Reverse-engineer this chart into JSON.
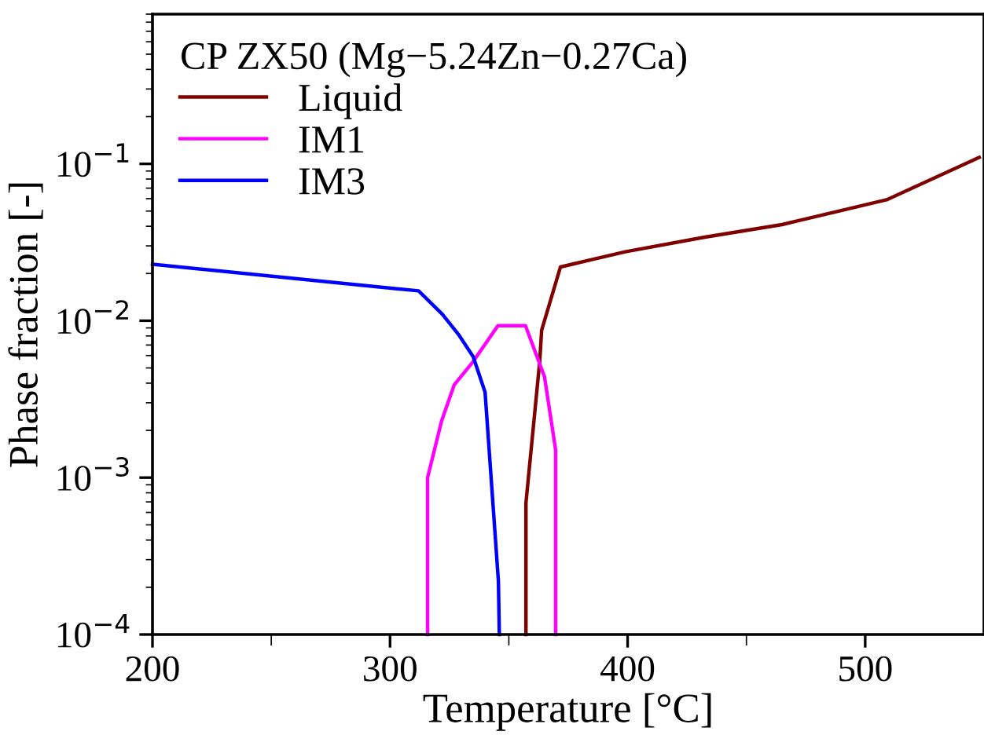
{
  "chart_data": {
    "type": "line",
    "legend_title": "CP ZX50 (Mg−5.24Zn−0.27Ca)",
    "xlabel": "Temperature [°C]",
    "ylabel": "Phase fraction [-]",
    "xlim": [
      200,
      550
    ],
    "xticks": [
      200,
      300,
      400,
      500
    ],
    "ylim": [
      0.0001,
      0.9
    ],
    "yticks": [
      {
        "value": 0.0001,
        "label": "10$^{−4}$"
      },
      {
        "value": 0.001,
        "label": "10$^{−3}$"
      },
      {
        "value": 0.01,
        "label": "10$^{−2}$"
      },
      {
        "value": 0.1,
        "label": "10$^{−1}$"
      }
    ],
    "log": "y",
    "grid": false,
    "legend": "top left",
    "line_style": "solid",
    "marker": "none",
    "series": [
      {
        "name": "Liquid",
        "color": "#800000",
        "x": [
          357.2,
          357.2,
          363,
          363.8,
          371.7,
          399,
          432,
          465,
          509,
          548
        ],
        "values": [
          0.0001,
          0.00069,
          0.0055,
          0.0087,
          0.022,
          0.0275,
          0.034,
          0.041,
          0.059,
          0.11
        ]
      },
      {
        "name": "IM1",
        "color": "#ff00ff",
        "x": [
          315.8,
          315.8,
          321.7,
          327,
          335,
          345.4,
          357,
          365,
          369.7,
          369.7
        ],
        "values": [
          0.0001,
          0.001,
          0.0023,
          0.0039,
          0.0055,
          0.0093,
          0.0093,
          0.0044,
          0.0015,
          0.0001
        ]
      },
      {
        "name": "IM3",
        "color": "#0000ff",
        "x": [
          200,
          312,
          322,
          329,
          335,
          340,
          345.6,
          346
        ],
        "values": [
          0.0229,
          0.0155,
          0.011,
          0.0081,
          0.0059,
          0.0035,
          0.00022,
          0.0001
        ]
      }
    ]
  }
}
